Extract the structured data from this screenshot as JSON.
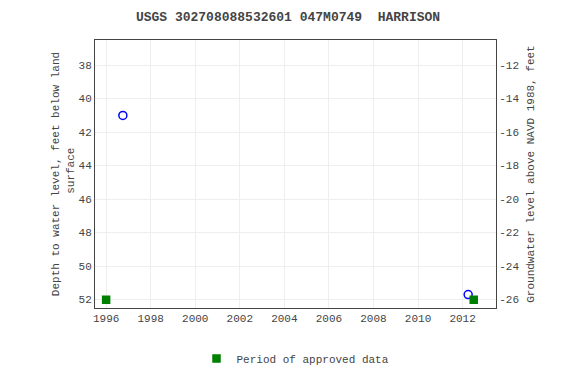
{
  "chart_data": {
    "type": "scatter",
    "title": "USGS 302708088532601 047M0749  HARRISON",
    "ylabel": "Depth to water level, feet below land\n surface",
    "y2label": "Groundwater level above NAVD 1988, feet",
    "xlim": [
      1995.5,
      2013.5
    ],
    "ylim": [
      52.5,
      36.5
    ],
    "y2lim": [
      -26.5,
      -10.5
    ],
    "xticks": [
      1996,
      1998,
      2000,
      2002,
      2004,
      2006,
      2008,
      2010,
      2012
    ],
    "yticks": [
      38,
      40,
      42,
      44,
      46,
      48,
      50,
      52
    ],
    "y2ticks": [
      -12,
      -14,
      -16,
      -18,
      -20,
      -22,
      -24,
      -26
    ],
    "grid": true,
    "legend": "bottom",
    "series": [
      {
        "color": "blue",
        "marker": "circle-open",
        "x": [
          1996.75,
          2012.25
        ],
        "values": [
          41.0,
          51.7
        ]
      },
      {
        "name": "Period of approved data",
        "color": "#008000",
        "marker": "square",
        "x": [
          1996.0,
          2012.5
        ],
        "values": [
          52.0,
          52.0
        ]
      }
    ]
  }
}
